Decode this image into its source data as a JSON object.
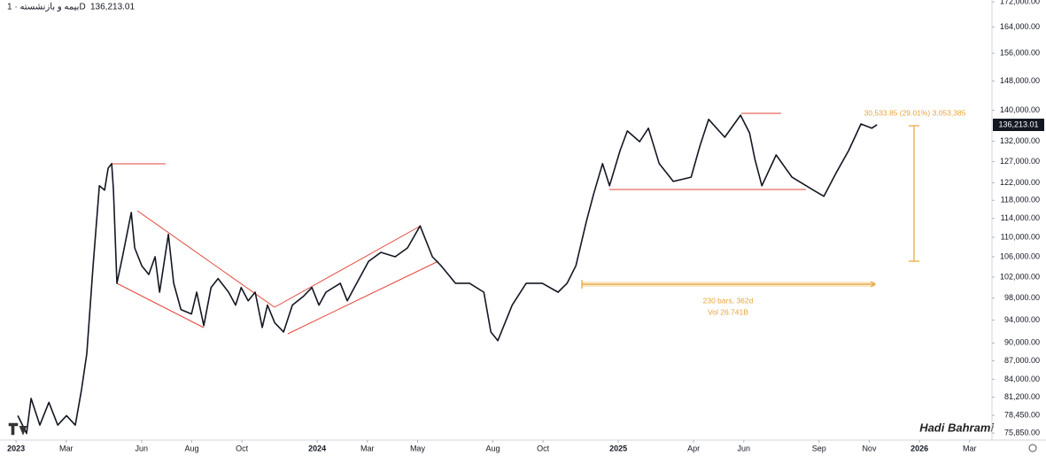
{
  "chart_data": {
    "type": "line",
    "title": "بیمه و بازنشسته · 1D",
    "last_price_label": "136,213.01",
    "annotations": [
      "30,533.85 (29.01%) 3,053,385",
      "230 bars, 362d",
      "Vol 26.741B",
      "Hadi Bahrami"
    ],
    "log_scale": true,
    "grid": false,
    "xlim": [
      -0.64,
      38.89
    ],
    "ylim": [
      75100,
      172600
    ],
    "xticks": [
      {
        "value": 0,
        "label": "2023"
      },
      {
        "value": 2,
        "label": "Mar"
      },
      {
        "value": 5,
        "label": "Jun"
      },
      {
        "value": 7,
        "label": "Aug"
      },
      {
        "value": 9,
        "label": "Oct"
      },
      {
        "value": 12,
        "label": "2024"
      },
      {
        "value": 14,
        "label": "Mar"
      },
      {
        "value": 16,
        "label": "May"
      },
      {
        "value": 19,
        "label": "Aug"
      },
      {
        "value": 21,
        "label": "Oct"
      },
      {
        "value": 24,
        "label": "2025"
      },
      {
        "value": 27,
        "label": "Apr"
      },
      {
        "value": 29,
        "label": "Jun"
      },
      {
        "value": 32,
        "label": "Sep"
      },
      {
        "value": 34,
        "label": "Nov"
      },
      {
        "value": 36,
        "label": "2026"
      },
      {
        "value": 38,
        "label": "Mar"
      }
    ],
    "yticks": [
      {
        "value": 172000,
        "label": "172,000.00"
      },
      {
        "value": 164000,
        "label": "164,000.00"
      },
      {
        "value": 156000,
        "label": "156,000.00"
      },
      {
        "value": 148000,
        "label": "148,000.00"
      },
      {
        "value": 140000,
        "label": "140,000.00"
      },
      {
        "value": 132000,
        "label": "132,000.00"
      },
      {
        "value": 127000,
        "label": "127,000.00"
      },
      {
        "value": 122000,
        "label": "122,000.00"
      },
      {
        "value": 118000,
        "label": "118,000.00"
      },
      {
        "value": 114000,
        "label": "114,000.00"
      },
      {
        "value": 110000,
        "label": "110,000.00"
      },
      {
        "value": 106000,
        "label": "106,000.00"
      },
      {
        "value": 102000,
        "label": "102,000.00"
      },
      {
        "value": 98000,
        "label": "98,000.00"
      },
      {
        "value": 94000,
        "label": "94,000.00"
      },
      {
        "value": 90000,
        "label": "90,000.00"
      },
      {
        "value": 87000,
        "label": "87,000.00"
      },
      {
        "value": 84000,
        "label": "84,000.00"
      },
      {
        "value": 81200,
        "label": "81,200.00"
      },
      {
        "value": 78450,
        "label": "78,450.00"
      },
      {
        "value": 75850,
        "label": "75,850.00"
      }
    ],
    "series": [
      {
        "color": "#131722",
        "x": [
          0.07,
          0.42,
          0.6,
          0.95,
          1.31,
          1.66,
          2.01,
          2.36,
          2.61,
          2.82,
          3.07,
          3.32,
          3.53,
          3.67,
          3.81,
          3.88,
          4.02,
          4.24,
          4.59,
          4.73,
          5.01,
          5.29,
          5.54,
          5.72,
          6.07,
          6.28,
          6.57,
          6.99,
          7.2,
          7.48,
          7.77,
          8.05,
          8.47,
          8.75,
          8.97,
          9.25,
          9.53,
          9.81,
          10.02,
          10.31,
          10.66,
          11.01,
          11.44,
          11.79,
          12.07,
          12.35,
          12.92,
          13.2,
          13.48,
          14.05,
          14.54,
          15.11,
          15.6,
          16.1,
          16.59,
          16.94,
          17.51,
          18.07,
          18.64,
          18.92,
          19.2,
          19.77,
          20.33,
          20.97,
          21.6,
          21.96,
          22.31,
          22.73,
          23.01,
          23.37,
          23.65,
          24.07,
          24.36,
          24.85,
          25.2,
          25.63,
          26.19,
          26.9,
          27.25,
          27.6,
          28.24,
          28.87,
          29.23,
          29.44,
          29.72,
          30.29,
          30.92,
          31.77,
          32.19,
          32.69,
          33.18,
          33.67,
          34.1,
          34.31
        ],
        "values": [
          78400,
          75800,
          81000,
          77000,
          80400,
          77000,
          78400,
          77000,
          82400,
          88200,
          104200,
          121300,
          120300,
          125400,
          126500,
          120300,
          100800,
          106000,
          115300,
          107800,
          104200,
          102500,
          106000,
          99100,
          110600,
          100800,
          95900,
          95100,
          99100,
          93000,
          100000,
          101700,
          99100,
          96700,
          100000,
          97500,
          99100,
          92700,
          96700,
          93500,
          91900,
          96700,
          98300,
          100000,
          96700,
          99100,
          100800,
          97500,
          100000,
          105100,
          106900,
          106000,
          107800,
          112400,
          106000,
          104200,
          100800,
          100800,
          99100,
          91900,
          90400,
          96700,
          100800,
          100800,
          99100,
          100800,
          104200,
          113400,
          119300,
          126500,
          121300,
          129700,
          134600,
          131900,
          135300,
          126500,
          122300,
          123300,
          130800,
          137600,
          133000,
          138700,
          134100,
          127600,
          121300,
          128600,
          123300,
          120300,
          118900,
          124400,
          129700,
          136400,
          135300,
          136213.01
        ]
      }
    ]
  }
}
